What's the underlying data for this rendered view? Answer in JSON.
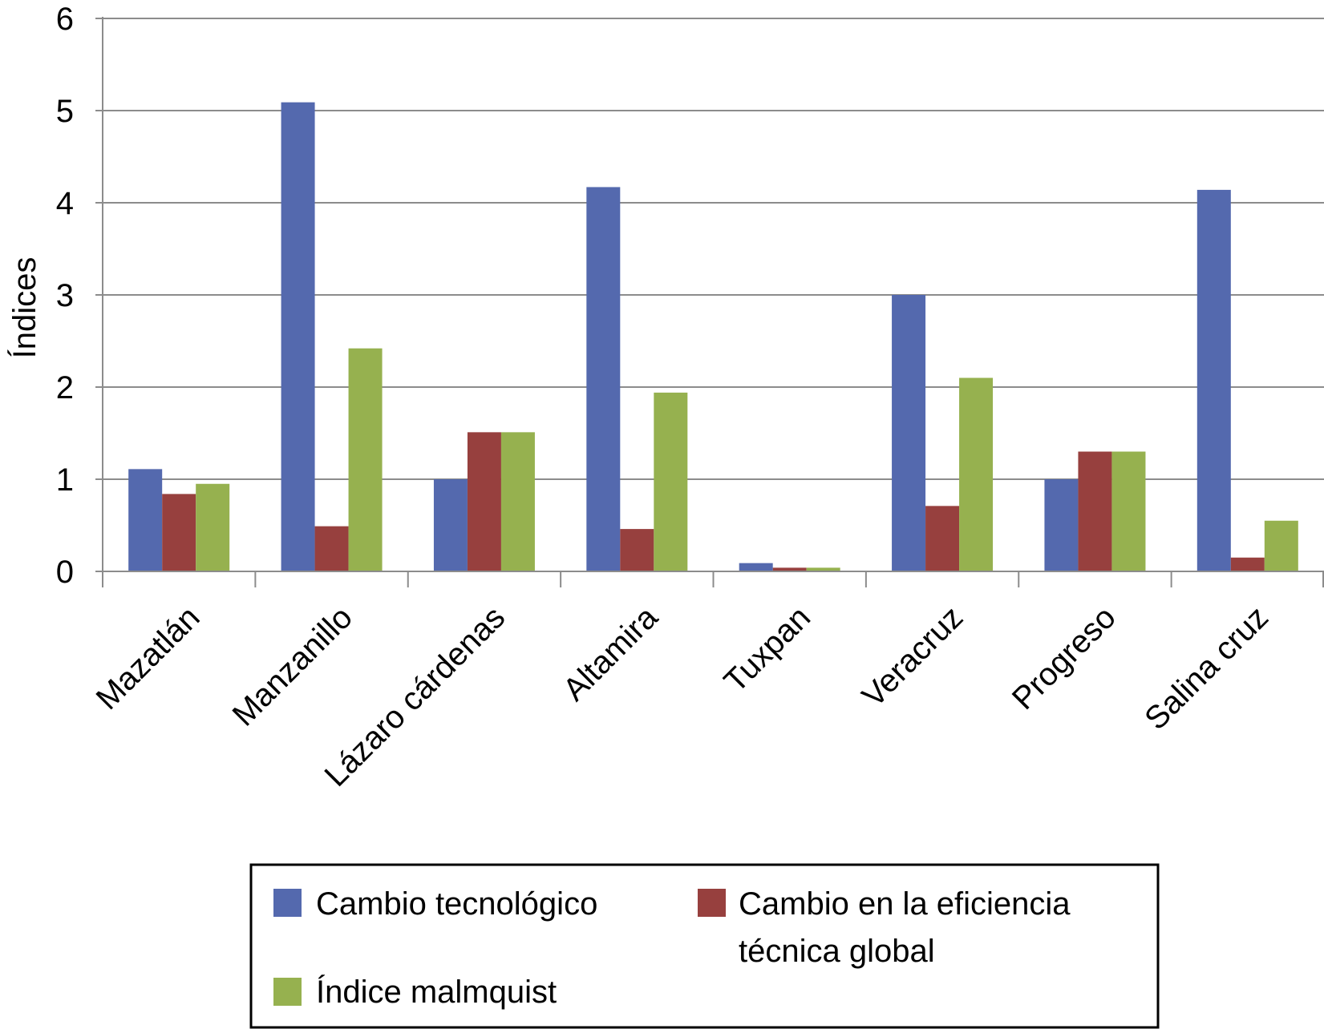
{
  "chart_data": {
    "type": "bar",
    "title": "",
    "xlabel": "",
    "ylabel": "Índices",
    "ylim": [
      0,
      6
    ],
    "yticks": [
      "0",
      "1",
      "2",
      "3",
      "4",
      "5",
      "6"
    ],
    "grid": true,
    "categories": [
      "Mazatlán",
      "Manzanillo",
      "Lázaro cárdenas",
      "Altamira",
      "Tuxpan",
      "Veracruz",
      "Progreso",
      "Salina cruz"
    ],
    "series": [
      {
        "name": "Cambio tecnológico",
        "color": "#5469ae",
        "values": [
          1.11,
          5.09,
          1.0,
          4.17,
          0.09,
          3.0,
          1.0,
          4.14
        ]
      },
      {
        "name": "Cambio en la eficiencia técnica global",
        "color": "#97403e",
        "values": [
          0.84,
          0.49,
          1.51,
          0.46,
          0.04,
          0.71,
          1.3,
          0.15
        ]
      },
      {
        "name": "Índice malmquist",
        "color": "#96b14f",
        "values": [
          0.95,
          2.42,
          1.51,
          1.94,
          0.04,
          2.1,
          1.3,
          0.55
        ]
      }
    ],
    "legend": {
      "position": "bottom",
      "lines": {
        "cambio_tecnologico": "Cambio tecnológico",
        "eficiencia_line1": "Cambio en la eficiencia",
        "eficiencia_line2": "técnica global",
        "malmquist": "Índice malmquist"
      }
    }
  }
}
